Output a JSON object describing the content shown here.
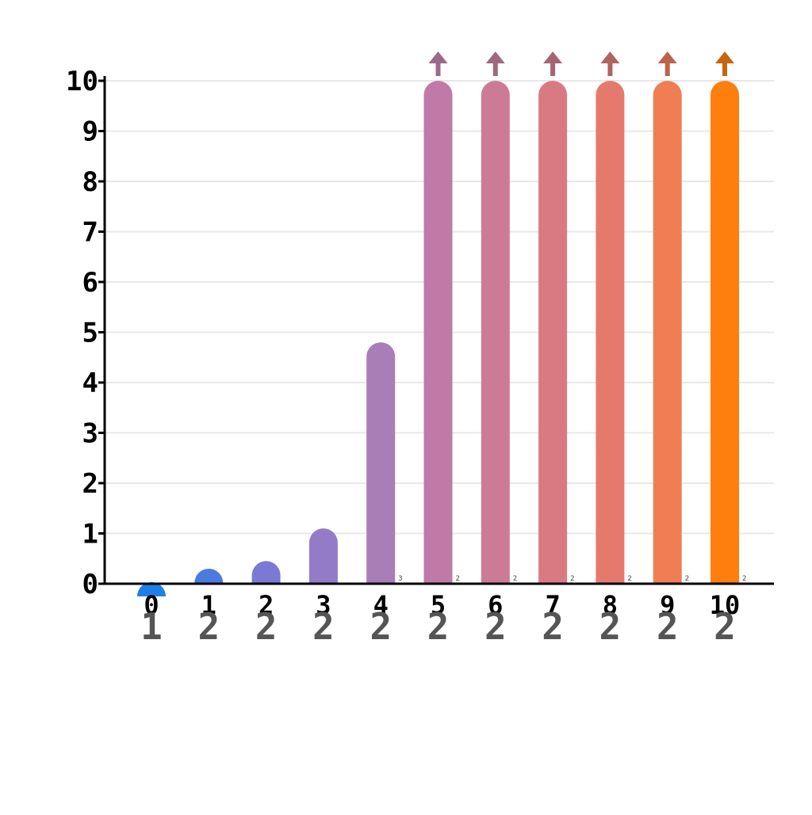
{
  "chart_data": {
    "type": "bar",
    "title": "",
    "xlabel": "",
    "ylabel": "",
    "ylim": [
      0,
      10
    ],
    "categories": [
      "0",
      "1",
      "2",
      "3",
      "4",
      "5",
      "6",
      "7",
      "8",
      "9",
      "10"
    ],
    "values": [
      0.0,
      0.3,
      0.45,
      1.1,
      4.8,
      10,
      10,
      10,
      10,
      10,
      10
    ],
    "clipped": [
      false,
      false,
      false,
      false,
      false,
      true,
      true,
      true,
      true,
      true,
      true
    ],
    "bar_colors": [
      "#1f7fe6",
      "#4d7ae0",
      "#7a79d4",
      "#947bc8",
      "#a97db8",
      "#bf7aa8",
      "#cc7b96",
      "#d97a82",
      "#e57a6c",
      "#f07e52",
      "#ff7f0e"
    ],
    "arrow_colors": [
      "#9b6a8a",
      "#9b6a7e",
      "#a56673",
      "#b0645f",
      "#bc644b",
      "#c8650f"
    ],
    "y_ticks": [
      "0",
      "1",
      "2",
      "3",
      "4",
      "5",
      "6",
      "7",
      "8",
      "9",
      "10"
    ],
    "secondary_labels": [
      "1",
      "2",
      "2",
      "2",
      "2",
      "2",
      "2",
      "2",
      "2",
      "2",
      "2"
    ],
    "minor_labels": [
      "3",
      "2",
      "2",
      "2",
      "2",
      "2",
      "2"
    ],
    "grid": true,
    "legend": "none"
  }
}
